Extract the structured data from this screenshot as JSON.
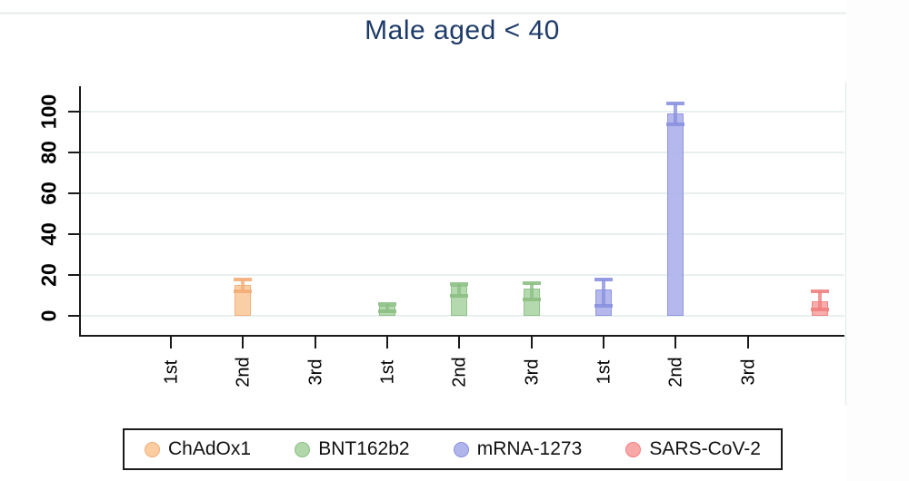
{
  "title": "Male aged < 40",
  "chart_data": {
    "type": "bar",
    "title": "Male aged < 40",
    "title_color": "#1e3a68",
    "xlabel": "",
    "ylabel": "",
    "ylim": [
      0,
      110
    ],
    "yticks": [
      0,
      20,
      40,
      60,
      80,
      100
    ],
    "grid": "horizontal",
    "gridline_color": "#e8f0ef",
    "legend_position": "bottom",
    "x_tick_labels": [
      "1st",
      "2nd",
      "3rd",
      "1st",
      "2nd",
      "3rd",
      "1st",
      "2nd",
      "3rd"
    ],
    "n_positions": 10,
    "error_bars": true,
    "series": [
      {
        "name": "ChAdOx1",
        "fill": "#fbcda1",
        "edge": "#f3ac77",
        "points": [
          {
            "pos": 2,
            "x_label": "2nd",
            "value": 15,
            "ci_low": 12,
            "ci_high": 18
          }
        ]
      },
      {
        "name": "BNT162b2",
        "fill": "#b2d7aa",
        "edge": "#8cbf83",
        "points": [
          {
            "pos": 4,
            "x_label": "1st",
            "value": 4.8,
            "ci_low": 2.2,
            "ci_high": 5.6
          },
          {
            "pos": 5,
            "x_label": "2nd",
            "value": 14.5,
            "ci_low": 10,
            "ci_high": 15.5
          },
          {
            "pos": 6,
            "x_label": "3rd",
            "value": 13.5,
            "ci_low": 8,
            "ci_high": 16
          }
        ]
      },
      {
        "name": "mRNA-1273",
        "fill": "#b0b5ec",
        "edge": "#8a91e0",
        "points": [
          {
            "pos": 7,
            "x_label": "1st",
            "value": 13,
            "ci_low": 5,
            "ci_high": 17.6
          },
          {
            "pos": 8,
            "x_label": "2nd",
            "value": 99,
            "ci_low": 94,
            "ci_high": 104
          }
        ]
      },
      {
        "name": "SARS-CoV-2",
        "fill": "#f9a8a8",
        "edge": "#f07f7f",
        "points": [
          {
            "pos": 10,
            "x_label": "",
            "value": 7,
            "ci_low": 3,
            "ci_high": 12
          }
        ]
      }
    ]
  }
}
